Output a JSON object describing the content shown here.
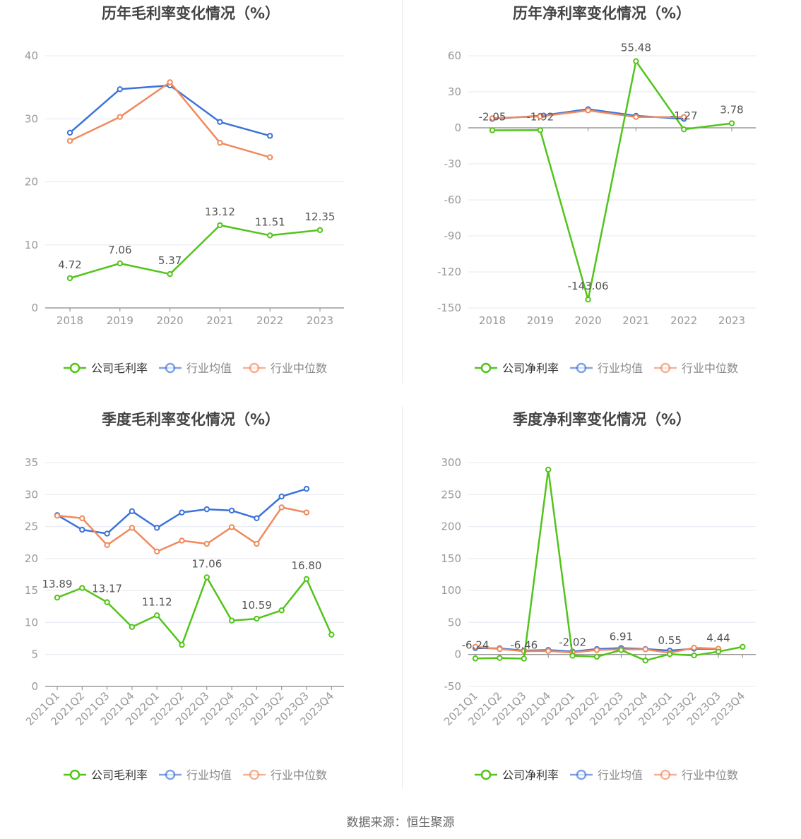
{
  "colors": {
    "company": "#52c41a",
    "industry_avg": "#3b73d9",
    "industry_median": "#f08a5d",
    "axis": "#888888",
    "grid": "#e6e9f0",
    "title": "#444444",
    "label": "#555555",
    "tick": "#999999"
  },
  "legend_labels": {
    "company_gross": "公司毛利率",
    "company_net": "公司净利率",
    "industry_avg": "行业均值",
    "industry_median": "行业中位数"
  },
  "source_text": "数据来源：恒生聚源",
  "chart_data": [
    {
      "type": "line",
      "title": "历年毛利率变化情况（%）",
      "categories": [
        "2018",
        "2019",
        "2020",
        "2021",
        "2022",
        "2023"
      ],
      "ylim": [
        0,
        40
      ],
      "yticks": [
        0,
        10,
        20,
        30,
        40
      ],
      "grid": true,
      "legend_position": "bottom",
      "series": [
        {
          "name": "公司毛利率",
          "key": "company",
          "values": [
            4.72,
            7.06,
            5.37,
            13.12,
            11.51,
            12.35
          ]
        },
        {
          "name": "行业均值",
          "key": "industry_avg",
          "values": [
            27.8,
            34.7,
            35.3,
            29.5,
            27.3,
            null
          ]
        },
        {
          "name": "行业中位数",
          "key": "industry_median",
          "values": [
            26.5,
            30.3,
            35.8,
            26.2,
            23.9,
            null
          ]
        }
      ],
      "data_labels": [
        {
          "series": 0,
          "index": 0,
          "text": "4.72"
        },
        {
          "series": 0,
          "index": 1,
          "text": "7.06"
        },
        {
          "series": 0,
          "index": 2,
          "text": "5.37"
        },
        {
          "series": 0,
          "index": 3,
          "text": "13.12"
        },
        {
          "series": 0,
          "index": 4,
          "text": "11.51"
        },
        {
          "series": 0,
          "index": 5,
          "text": "12.35"
        }
      ]
    },
    {
      "type": "line",
      "title": "历年净利率变化情况（%）",
      "categories": [
        "2018",
        "2019",
        "2020",
        "2021",
        "2022",
        "2023"
      ],
      "ylim": [
        -150,
        60
      ],
      "yticks": [
        -150,
        -120,
        -90,
        -60,
        -30,
        0,
        30,
        60
      ],
      "grid": true,
      "legend_position": "bottom",
      "series": [
        {
          "name": "公司净利率",
          "key": "company",
          "values": [
            -2.05,
            -1.92,
            -143.06,
            55.48,
            -1.27,
            3.78
          ]
        },
        {
          "name": "行业均值",
          "key": "industry_avg",
          "values": [
            7.5,
            10.0,
            15.5,
            10.0,
            7.5,
            null
          ]
        },
        {
          "name": "行业中位数",
          "key": "industry_median",
          "values": [
            8.0,
            9.5,
            14.5,
            9.0,
            9.0,
            null
          ]
        }
      ],
      "data_labels": [
        {
          "series": 0,
          "index": 0,
          "text": "-2.05"
        },
        {
          "series": 0,
          "index": 1,
          "text": "-1.92"
        },
        {
          "series": 0,
          "index": 2,
          "text": "-143.06"
        },
        {
          "series": 0,
          "index": 3,
          "text": "55.48"
        },
        {
          "series": 0,
          "index": 4,
          "text": "-1.27"
        },
        {
          "series": 0,
          "index": 5,
          "text": "3.78"
        }
      ]
    },
    {
      "type": "line",
      "title": "季度毛利率变化情况（%）",
      "categories": [
        "2021Q1",
        "2021Q2",
        "2021Q3",
        "2021Q4",
        "2022Q1",
        "2022Q2",
        "2022Q3",
        "2022Q4",
        "2023Q1",
        "2023Q2",
        "2023Q3",
        "2023Q4"
      ],
      "ylim": [
        0,
        35
      ],
      "yticks": [
        0,
        5,
        10,
        15,
        20,
        25,
        30,
        35
      ],
      "grid": true,
      "legend_position": "bottom",
      "series": [
        {
          "name": "公司毛利率",
          "key": "company",
          "values": [
            13.89,
            15.4,
            13.17,
            9.3,
            11.12,
            6.5,
            17.06,
            10.3,
            10.59,
            11.9,
            16.8,
            8.1
          ]
        },
        {
          "name": "行业均值",
          "key": "industry_avg",
          "values": [
            26.8,
            24.5,
            23.9,
            27.4,
            24.8,
            27.2,
            27.7,
            27.5,
            26.3,
            29.7,
            30.9,
            null
          ]
        },
        {
          "name": "行业中位数",
          "key": "industry_median",
          "values": [
            26.7,
            26.3,
            22.1,
            24.8,
            21.1,
            22.8,
            22.3,
            24.9,
            22.3,
            28.0,
            27.2,
            null
          ]
        }
      ],
      "data_labels": [
        {
          "series": 0,
          "index": 0,
          "text": "13.89"
        },
        {
          "series": 0,
          "index": 2,
          "text": "13.17"
        },
        {
          "series": 0,
          "index": 4,
          "text": "11.12"
        },
        {
          "series": 0,
          "index": 6,
          "text": "17.06"
        },
        {
          "series": 0,
          "index": 8,
          "text": "10.59"
        },
        {
          "series": 0,
          "index": 10,
          "text": "16.80"
        }
      ]
    },
    {
      "type": "line",
      "title": "季度净利率变化情况（%）",
      "categories": [
        "2021Q1",
        "2021Q2",
        "2021Q3",
        "2021Q4",
        "2022Q1",
        "2022Q2",
        "2022Q3",
        "2022Q4",
        "2023Q1",
        "2023Q2",
        "2023Q3",
        "2023Q4"
      ],
      "ylim": [
        -50,
        300
      ],
      "yticks": [
        -50,
        0,
        50,
        100,
        150,
        200,
        250,
        300
      ],
      "grid": true,
      "legend_position": "bottom",
      "series": [
        {
          "name": "公司净利率",
          "key": "company",
          "values": [
            -6.24,
            -5.5,
            -6.46,
            289.0,
            -2.02,
            -3.5,
            6.91,
            -9.5,
            0.55,
            -1.5,
            4.44,
            12.0
          ]
        },
        {
          "name": "行业均值",
          "key": "industry_avg",
          "values": [
            10.0,
            9.5,
            6.0,
            7.0,
            4.5,
            8.5,
            10.0,
            8.5,
            6.0,
            9.0,
            8.5,
            null
          ]
        },
        {
          "name": "行业中位数",
          "key": "industry_median",
          "values": [
            12.0,
            8.5,
            5.0,
            5.5,
            3.0,
            7.0,
            8.0,
            8.0,
            2.5,
            10.5,
            9.0,
            null
          ]
        }
      ],
      "data_labels": [
        {
          "series": 0,
          "index": 0,
          "text": "-6.24"
        },
        {
          "series": 0,
          "index": 2,
          "text": "-6.46"
        },
        {
          "series": 0,
          "index": 4,
          "text": "-2.02"
        },
        {
          "series": 0,
          "index": 6,
          "text": "6.91"
        },
        {
          "series": 0,
          "index": 8,
          "text": "0.55"
        },
        {
          "series": 0,
          "index": 10,
          "text": "4.44"
        }
      ]
    }
  ]
}
